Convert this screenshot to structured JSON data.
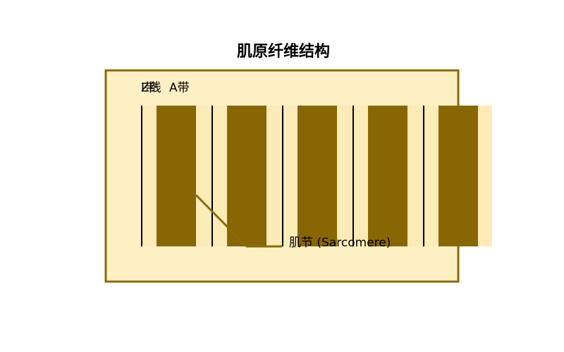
{
  "diagram": {
    "title": "肌原纤维结构",
    "labels": {
      "i_band": "I带",
      "z_line": "Z线",
      "a_band": "A带",
      "sarcomere": "肌节 (Sarcomere)"
    },
    "colors": {
      "frame_fill": "#fdf0c4",
      "frame_stroke": "#8a6a08",
      "i_band": "#fdebb8",
      "a_band": "#886603",
      "z_line": "#000000",
      "pointer": "#8a6a08"
    }
  }
}
